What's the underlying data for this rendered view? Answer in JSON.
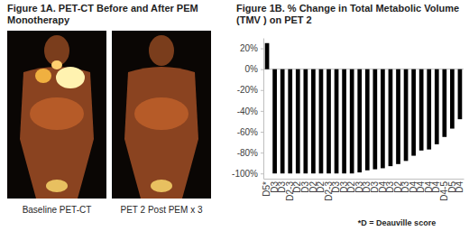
{
  "chart_data": {
    "type": "bar",
    "title": "Figure 1B. % Change in Total Metabolic Volume (TMV ) on PET 2",
    "categories": [
      "D5*",
      "D3",
      "D3",
      "D2-3",
      "D2",
      "D3",
      "D2",
      "D2",
      "D2-3",
      "D3",
      "D3",
      "D2",
      "D3",
      "D3",
      "D3",
      "D4",
      "D3",
      "D2",
      "D3",
      "D4",
      "D4",
      "D4",
      "D4",
      "D4-5",
      "D5",
      "D4"
    ],
    "values": [
      25,
      -100,
      -100,
      -100,
      -100,
      -100,
      -100,
      -100,
      -100,
      -100,
      -100,
      -100,
      -99,
      -97,
      -96,
      -95,
      -93,
      -91,
      -88,
      -83,
      -78,
      -77,
      -72,
      -65,
      -57,
      -48
    ],
    "color": "#000000",
    "ylim": [
      -105,
      30
    ],
    "yticks": [
      {
        "value": 20,
        "label": "20%"
      },
      {
        "value": 0,
        "label": "0%"
      },
      {
        "value": -20,
        "label": "-20%"
      },
      {
        "value": -40,
        "label": "-40%"
      },
      {
        "value": -60,
        "label": "-60%"
      },
      {
        "value": -80,
        "label": "-80%"
      },
      {
        "value": -100,
        "label": "-100%"
      }
    ],
    "grid": false,
    "annotations": [
      "*D = Deauville score"
    ]
  },
  "figure_1a": {
    "title": "Figure 1A. PET-CT Before and After PEM Monotherapy",
    "panels": [
      "Baseline PET-CT",
      "PET 2 Post PEM x 3"
    ]
  }
}
